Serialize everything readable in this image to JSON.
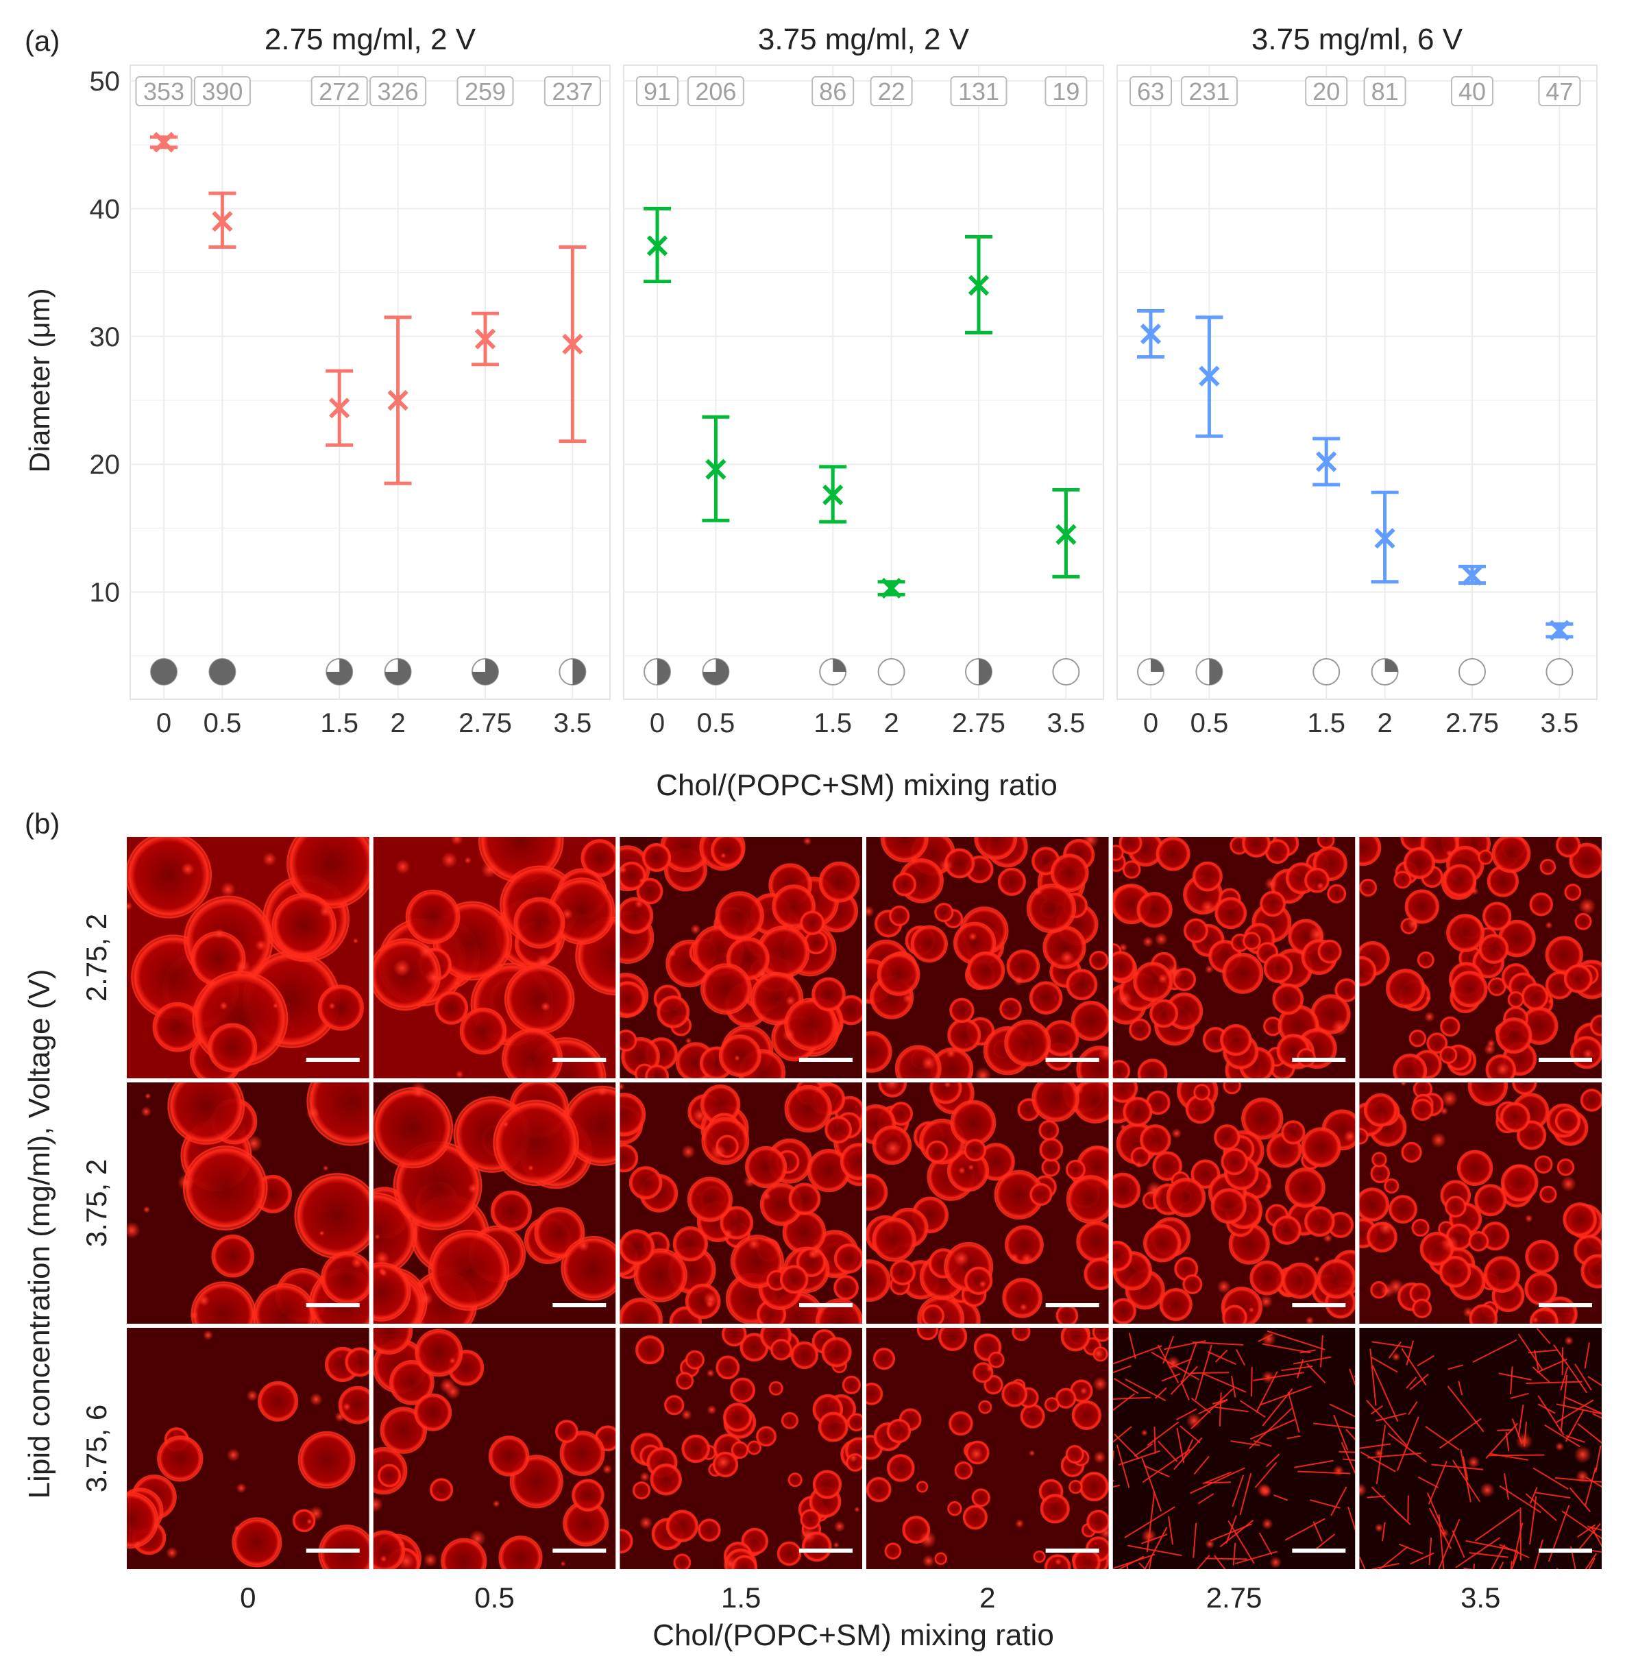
{
  "panel_labels": {
    "a": "(a)",
    "b": "(b)"
  },
  "colors": {
    "panel_bg": "#ffffff",
    "panel_border": "#e3e3e3",
    "grid": "#ececec",
    "tick_text": "#333333",
    "count_box": "#bdbdbd",
    "count_text": "#a0a0a0",
    "pie_fill": "#666666",
    "pie_stroke": "#9a9a9a"
  },
  "chart_data": {
    "type": "scatter",
    "ylabel": "Diameter (μm)",
    "xlabel": "Chol/(POPC+SM) mixing ratio",
    "ylim": [
      0,
      50
    ],
    "yticks": [
      10,
      20,
      30,
      40,
      50
    ],
    "x_categories": [
      "0",
      "0.5",
      "1.5",
      "2",
      "2.75",
      "3.5"
    ],
    "x_values": [
      0,
      0.5,
      1.5,
      2,
      2.75,
      3.5
    ],
    "facets": [
      {
        "title": "2.75 mg/ml, 2 V",
        "color": "#f8766d",
        "points": [
          {
            "x": 0,
            "y": 45.2,
            "lo": 44.8,
            "hi": 45.6,
            "n": "353",
            "pie": 1.0
          },
          {
            "x": 0.5,
            "y": 39.0,
            "lo": 37.0,
            "hi": 41.2,
            "n": "390",
            "pie": 1.0
          },
          {
            "x": 1.5,
            "y": 24.4,
            "lo": 21.5,
            "hi": 27.3,
            "n": "272",
            "pie": 0.75
          },
          {
            "x": 2,
            "y": 25.0,
            "lo": 18.5,
            "hi": 31.5,
            "n": "326",
            "pie": 0.75
          },
          {
            "x": 2.75,
            "y": 29.8,
            "lo": 27.8,
            "hi": 31.8,
            "n": "259",
            "pie": 0.75
          },
          {
            "x": 3.5,
            "y": 29.4,
            "lo": 21.8,
            "hi": 37.0,
            "n": "237",
            "pie": 0.5
          }
        ]
      },
      {
        "title": "3.75 mg/ml, 2 V",
        "color": "#00ba38",
        "points": [
          {
            "x": 0,
            "y": 37.1,
            "lo": 34.3,
            "hi": 40.0,
            "n": "91",
            "pie": 0.5
          },
          {
            "x": 0.5,
            "y": 19.6,
            "lo": 15.6,
            "hi": 23.7,
            "n": "206",
            "pie": 0.75
          },
          {
            "x": 1.5,
            "y": 17.6,
            "lo": 15.5,
            "hi": 19.8,
            "n": "86",
            "pie": 0.25
          },
          {
            "x": 2,
            "y": 10.3,
            "lo": 9.8,
            "hi": 10.8,
            "n": "22",
            "pie": 0.0
          },
          {
            "x": 2.75,
            "y": 34.0,
            "lo": 30.3,
            "hi": 37.8,
            "n": "131",
            "pie": 0.5
          },
          {
            "x": 3.5,
            "y": 14.5,
            "lo": 11.2,
            "hi": 18.0,
            "n": "19",
            "pie": 0.0
          }
        ]
      },
      {
        "title": "3.75 mg/ml, 6 V",
        "color": "#619cff",
        "points": [
          {
            "x": 0,
            "y": 30.2,
            "lo": 28.4,
            "hi": 32.0,
            "n": "63",
            "pie": 0.25
          },
          {
            "x": 0.5,
            "y": 26.9,
            "lo": 22.2,
            "hi": 31.5,
            "n": "231",
            "pie": 0.5
          },
          {
            "x": 1.5,
            "y": 20.2,
            "lo": 18.4,
            "hi": 22.0,
            "n": "20",
            "pie": 0.0
          },
          {
            "x": 2,
            "y": 14.2,
            "lo": 10.8,
            "hi": 17.8,
            "n": "81",
            "pie": 0.25
          },
          {
            "x": 2.75,
            "y": 11.3,
            "lo": 10.7,
            "hi": 12.0,
            "n": "40",
            "pie": 0.0
          },
          {
            "x": 3.5,
            "y": 7.0,
            "lo": 6.5,
            "hi": 7.5,
            "n": "47",
            "pie": 0.0
          }
        ]
      }
    ]
  },
  "micrographs": {
    "ylabel": "Lipid concentration (mg/ml), Voltage (V)",
    "xlabel": "Chol/(POPC+SM) mixing ratio",
    "columns": [
      "0",
      "0.5",
      "1.5",
      "2",
      "2.75",
      "3.5"
    ],
    "rows": [
      "2.75, 2",
      "3.75, 2",
      "3.75, 6"
    ]
  }
}
